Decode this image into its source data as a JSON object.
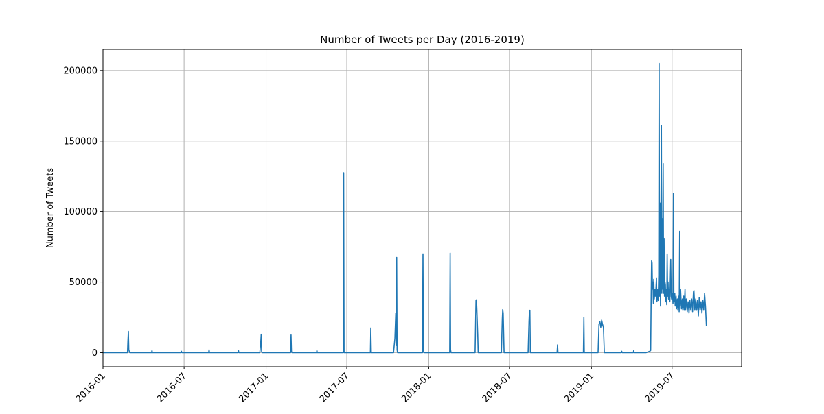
{
  "chart_data": {
    "type": "line",
    "title": "Number of Tweets per Day (2016-2019)",
    "xlabel": "",
    "ylabel": "Number of Tweets",
    "grid": true,
    "xlim": [
      "2016-01-01",
      "2019-12-04"
    ],
    "ylim": [
      -10000,
      215000
    ],
    "x_ticks": [
      "2016-01",
      "2016-07",
      "2017-01",
      "2017-07",
      "2018-01",
      "2018-07",
      "2019-01",
      "2019-07"
    ],
    "y_ticks": [
      0,
      50000,
      100000,
      150000,
      200000
    ],
    "colors": {
      "line": "#1f77b4",
      "grid": "#b0b0b0"
    },
    "series": [
      {
        "values": [
          {
            "x": "2016-01-01",
            "y": 0
          },
          {
            "x": "2016-02-25",
            "y": 0
          },
          {
            "x": "2016-02-26",
            "y": 8000
          },
          {
            "x": "2016-02-27",
            "y": 15000
          },
          {
            "x": "2016-02-28",
            "y": 2000
          },
          {
            "x": "2016-03-01",
            "y": 0
          },
          {
            "x": "2016-04-19",
            "y": 0
          },
          {
            "x": "2016-04-20",
            "y": 1500
          },
          {
            "x": "2016-04-21",
            "y": 0
          },
          {
            "x": "2016-06-24",
            "y": 0
          },
          {
            "x": "2016-06-25",
            "y": 1000
          },
          {
            "x": "2016-06-26",
            "y": 0
          },
          {
            "x": "2016-08-25",
            "y": 0
          },
          {
            "x": "2016-08-26",
            "y": 2000
          },
          {
            "x": "2016-08-27",
            "y": 0
          },
          {
            "x": "2016-10-30",
            "y": 0
          },
          {
            "x": "2016-10-31",
            "y": 1500
          },
          {
            "x": "2016-11-01",
            "y": 0
          },
          {
            "x": "2016-12-18",
            "y": 0
          },
          {
            "x": "2016-12-20",
            "y": 7000
          },
          {
            "x": "2016-12-21",
            "y": 13000
          },
          {
            "x": "2016-12-22",
            "y": 1000
          },
          {
            "x": "2016-12-23",
            "y": 0
          },
          {
            "x": "2017-02-25",
            "y": 0
          },
          {
            "x": "2017-02-26",
            "y": 12500
          },
          {
            "x": "2017-02-27",
            "y": 1000
          },
          {
            "x": "2017-02-28",
            "y": 0
          },
          {
            "x": "2017-04-24",
            "y": 0
          },
          {
            "x": "2017-04-25",
            "y": 1500
          },
          {
            "x": "2017-04-26",
            "y": 0
          },
          {
            "x": "2017-06-23",
            "y": 0
          },
          {
            "x": "2017-06-24",
            "y": 127500
          },
          {
            "x": "2017-06-25",
            "y": 0
          },
          {
            "x": "2017-08-23",
            "y": 0
          },
          {
            "x": "2017-08-24",
            "y": 17500
          },
          {
            "x": "2017-08-25",
            "y": 0
          },
          {
            "x": "2017-10-14",
            "y": 0
          },
          {
            "x": "2017-10-17",
            "y": 10000
          },
          {
            "x": "2017-10-19",
            "y": 28000
          },
          {
            "x": "2017-10-20",
            "y": 5000
          },
          {
            "x": "2017-10-21",
            "y": 67500
          },
          {
            "x": "2017-10-22",
            "y": 2000
          },
          {
            "x": "2017-10-23",
            "y": 0
          },
          {
            "x": "2017-12-18",
            "y": 0
          },
          {
            "x": "2017-12-19",
            "y": 70000
          },
          {
            "x": "2017-12-20",
            "y": 2000
          },
          {
            "x": "2017-12-21",
            "y": 0
          },
          {
            "x": "2018-02-17",
            "y": 0
          },
          {
            "x": "2018-02-18",
            "y": 70500
          },
          {
            "x": "2018-02-19",
            "y": 2000
          },
          {
            "x": "2018-02-20",
            "y": 0
          },
          {
            "x": "2018-04-15",
            "y": 0
          },
          {
            "x": "2018-04-16",
            "y": 20000
          },
          {
            "x": "2018-04-17",
            "y": 37000
          },
          {
            "x": "2018-04-18",
            "y": 37500
          },
          {
            "x": "2018-04-19",
            "y": 30000
          },
          {
            "x": "2018-04-21",
            "y": 12000
          },
          {
            "x": "2018-04-22",
            "y": 0
          },
          {
            "x": "2018-06-13",
            "y": 0
          },
          {
            "x": "2018-06-15",
            "y": 24000
          },
          {
            "x": "2018-06-16",
            "y": 30500
          },
          {
            "x": "2018-06-17",
            "y": 28000
          },
          {
            "x": "2018-06-19",
            "y": 0
          },
          {
            "x": "2018-08-12",
            "y": 0
          },
          {
            "x": "2018-08-14",
            "y": 22000
          },
          {
            "x": "2018-08-15",
            "y": 30000
          },
          {
            "x": "2018-08-16",
            "y": 30000
          },
          {
            "x": "2018-08-17",
            "y": 0
          },
          {
            "x": "2018-10-16",
            "y": 0
          },
          {
            "x": "2018-10-17",
            "y": 5500
          },
          {
            "x": "2018-10-18",
            "y": 0
          },
          {
            "x": "2018-12-14",
            "y": 0
          },
          {
            "x": "2018-12-15",
            "y": 25000
          },
          {
            "x": "2018-12-16",
            "y": 0
          },
          {
            "x": "2019-01-16",
            "y": 0
          },
          {
            "x": "2019-01-18",
            "y": 20000
          },
          {
            "x": "2019-01-20",
            "y": 22000
          },
          {
            "x": "2019-01-22",
            "y": 18000
          },
          {
            "x": "2019-01-24",
            "y": 23000
          },
          {
            "x": "2019-01-26",
            "y": 20000
          },
          {
            "x": "2019-01-28",
            "y": 18000
          },
          {
            "x": "2019-01-30",
            "y": 0
          },
          {
            "x": "2019-03-09",
            "y": 0
          },
          {
            "x": "2019-03-10",
            "y": 1000
          },
          {
            "x": "2019-03-11",
            "y": 0
          },
          {
            "x": "2019-04-05",
            "y": 0
          },
          {
            "x": "2019-04-06",
            "y": 1500
          },
          {
            "x": "2019-04-07",
            "y": 0
          },
          {
            "x": "2019-05-04",
            "y": 0
          },
          {
            "x": "2019-05-12",
            "y": 1000
          },
          {
            "x": "2019-05-14",
            "y": 1500
          },
          {
            "x": "2019-05-15",
            "y": 40000
          },
          {
            "x": "2019-05-16",
            "y": 65000
          },
          {
            "x": "2019-05-17",
            "y": 64000
          },
          {
            "x": "2019-05-18",
            "y": 45000
          },
          {
            "x": "2019-05-19",
            "y": 50000
          },
          {
            "x": "2019-05-20",
            "y": 35000
          },
          {
            "x": "2019-05-21",
            "y": 52000
          },
          {
            "x": "2019-05-22",
            "y": 38000
          },
          {
            "x": "2019-05-24",
            "y": 45000
          },
          {
            "x": "2019-05-25",
            "y": 40000
          },
          {
            "x": "2019-05-27",
            "y": 53000
          },
          {
            "x": "2019-05-28",
            "y": 36000
          },
          {
            "x": "2019-05-30",
            "y": 45000
          },
          {
            "x": "2019-05-31",
            "y": 37000
          },
          {
            "x": "2019-06-01",
            "y": 55000
          },
          {
            "x": "2019-06-02",
            "y": 205000
          },
          {
            "x": "2019-06-03",
            "y": 40000
          },
          {
            "x": "2019-06-04",
            "y": 106000
          },
          {
            "x": "2019-06-05",
            "y": 33000
          },
          {
            "x": "2019-06-06",
            "y": 90000
          },
          {
            "x": "2019-06-07",
            "y": 161000
          },
          {
            "x": "2019-06-08",
            "y": 42000
          },
          {
            "x": "2019-06-09",
            "y": 95000
          },
          {
            "x": "2019-06-10",
            "y": 45000
          },
          {
            "x": "2019-06-11",
            "y": 134000
          },
          {
            "x": "2019-06-12",
            "y": 42000
          },
          {
            "x": "2019-06-13",
            "y": 81000
          },
          {
            "x": "2019-06-14",
            "y": 40000
          },
          {
            "x": "2019-06-15",
            "y": 50000
          },
          {
            "x": "2019-06-16",
            "y": 48000
          },
          {
            "x": "2019-06-17",
            "y": 36000
          },
          {
            "x": "2019-06-18",
            "y": 45000
          },
          {
            "x": "2019-06-19",
            "y": 34000
          },
          {
            "x": "2019-06-20",
            "y": 70000
          },
          {
            "x": "2019-06-21",
            "y": 40000
          },
          {
            "x": "2019-06-22",
            "y": 50000
          },
          {
            "x": "2019-06-23",
            "y": 38000
          },
          {
            "x": "2019-06-24",
            "y": 45000
          },
          {
            "x": "2019-06-25",
            "y": 42000
          },
          {
            "x": "2019-06-26",
            "y": 36000
          },
          {
            "x": "2019-06-28",
            "y": 66000
          },
          {
            "x": "2019-06-29",
            "y": 40000
          },
          {
            "x": "2019-06-30",
            "y": 38000
          },
          {
            "x": "2019-07-02",
            "y": 42000
          },
          {
            "x": "2019-07-03",
            "y": 35000
          },
          {
            "x": "2019-07-04",
            "y": 113000
          },
          {
            "x": "2019-07-05",
            "y": 36000
          },
          {
            "x": "2019-07-07",
            "y": 42000
          },
          {
            "x": "2019-07-08",
            "y": 33000
          },
          {
            "x": "2019-07-10",
            "y": 40000
          },
          {
            "x": "2019-07-11",
            "y": 31000
          },
          {
            "x": "2019-07-13",
            "y": 38000
          },
          {
            "x": "2019-07-14",
            "y": 30000
          },
          {
            "x": "2019-07-16",
            "y": 40000
          },
          {
            "x": "2019-07-17",
            "y": 29000
          },
          {
            "x": "2019-07-18",
            "y": 86000
          },
          {
            "x": "2019-07-19",
            "y": 33000
          },
          {
            "x": "2019-07-20",
            "y": 45000
          },
          {
            "x": "2019-07-22",
            "y": 31000
          },
          {
            "x": "2019-07-24",
            "y": 38000
          },
          {
            "x": "2019-07-25",
            "y": 30000
          },
          {
            "x": "2019-07-27",
            "y": 40000
          },
          {
            "x": "2019-07-28",
            "y": 30000
          },
          {
            "x": "2019-07-30",
            "y": 45000
          },
          {
            "x": "2019-07-31",
            "y": 30000
          },
          {
            "x": "2019-08-02",
            "y": 38000
          },
          {
            "x": "2019-08-04",
            "y": 29000
          },
          {
            "x": "2019-08-06",
            "y": 36000
          },
          {
            "x": "2019-08-08",
            "y": 28000
          },
          {
            "x": "2019-08-10",
            "y": 37000
          },
          {
            "x": "2019-08-12",
            "y": 30000
          },
          {
            "x": "2019-08-14",
            "y": 38000
          },
          {
            "x": "2019-08-16",
            "y": 29000
          },
          {
            "x": "2019-08-18",
            "y": 43000
          },
          {
            "x": "2019-08-19",
            "y": 44000
          },
          {
            "x": "2019-08-21",
            "y": 30000
          },
          {
            "x": "2019-08-23",
            "y": 38000
          },
          {
            "x": "2019-08-25",
            "y": 30000
          },
          {
            "x": "2019-08-27",
            "y": 37000
          },
          {
            "x": "2019-08-29",
            "y": 26000
          },
          {
            "x": "2019-08-31",
            "y": 39000
          },
          {
            "x": "2019-09-02",
            "y": 30000
          },
          {
            "x": "2019-09-04",
            "y": 36000
          },
          {
            "x": "2019-09-06",
            "y": 28000
          },
          {
            "x": "2019-09-08",
            "y": 37000
          },
          {
            "x": "2019-09-10",
            "y": 30000
          },
          {
            "x": "2019-09-12",
            "y": 42000
          },
          {
            "x": "2019-09-14",
            "y": 33000
          },
          {
            "x": "2019-09-16",
            "y": 19000
          }
        ]
      }
    ]
  }
}
